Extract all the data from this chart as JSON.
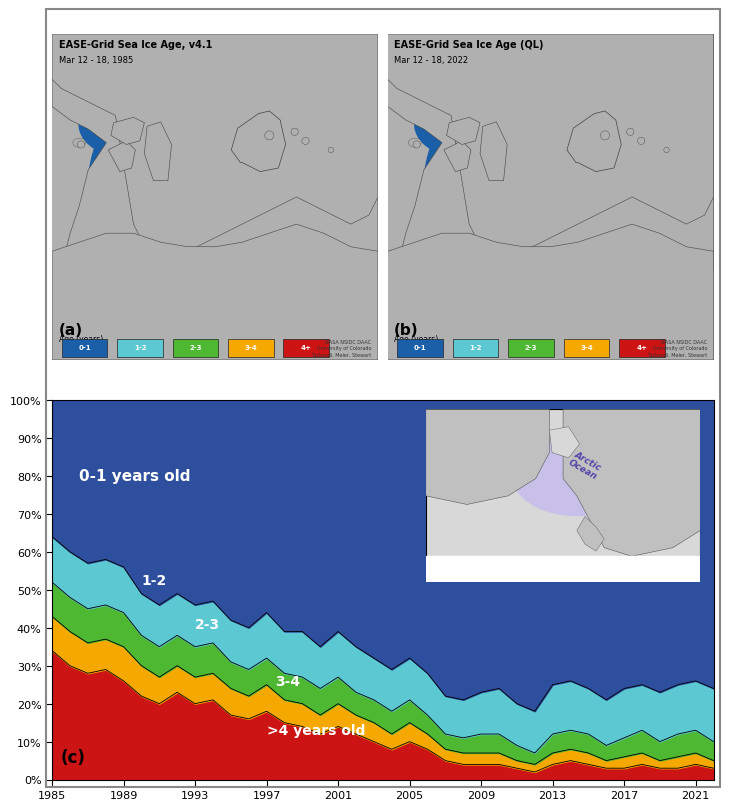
{
  "title_a": "EASE-Grid Sea Ice Age, v4.1",
  "subtitle_a": "Mar 12 - 18, 1985",
  "title_b": "EASE-Grid Sea Ice Age (QL)",
  "subtitle_b": "Mar 12 - 18, 2022",
  "label_a": "(a)",
  "label_b": "(b)",
  "label_c": "(c)",
  "age_labels": [
    "0-1",
    "1-2",
    "2-3",
    "3-4",
    "4+"
  ],
  "age_colors": [
    "#1a5fa8",
    "#5bc8d2",
    "#4eb832",
    "#f5a800",
    "#cc1414"
  ],
  "legend_label": "Age (years)",
  "credit_text": "NASA NSIDC DAAC\nUniversity of Colorado\nTuchsudi, Meier, Stewart",
  "chart_colors": {
    "age4plus": "#cc1414",
    "age34": "#f5a800",
    "age23": "#4eb832",
    "age12": "#5bc8d2",
    "age01": "#2d4f9e"
  },
  "years": [
    1985,
    1986,
    1987,
    1988,
    1989,
    1990,
    1991,
    1992,
    1993,
    1994,
    1995,
    1996,
    1997,
    1998,
    1999,
    2000,
    2001,
    2002,
    2003,
    2004,
    2005,
    2006,
    2007,
    2008,
    2009,
    2010,
    2011,
    2012,
    2013,
    2014,
    2015,
    2016,
    2017,
    2018,
    2019,
    2020,
    2021,
    2022
  ],
  "pct_4plus": [
    34,
    30,
    28,
    29,
    26,
    22,
    20,
    23,
    20,
    21,
    17,
    16,
    18,
    15,
    14,
    12,
    14,
    12,
    10,
    8,
    10,
    8,
    5,
    4,
    4,
    4,
    3,
    2,
    4,
    5,
    4,
    3,
    3,
    4,
    3,
    3,
    4,
    3
  ],
  "pct_34": [
    9,
    9,
    8,
    8,
    9,
    8,
    7,
    7,
    7,
    7,
    7,
    6,
    7,
    6,
    6,
    5,
    6,
    5,
    5,
    4,
    5,
    4,
    3,
    3,
    3,
    3,
    2,
    2,
    3,
    3,
    3,
    2,
    3,
    3,
    2,
    3,
    3,
    2
  ],
  "pct_23": [
    9,
    9,
    9,
    9,
    9,
    8,
    8,
    8,
    8,
    8,
    7,
    7,
    7,
    7,
    7,
    7,
    7,
    6,
    6,
    6,
    6,
    5,
    4,
    4,
    5,
    5,
    4,
    3,
    5,
    5,
    5,
    4,
    5,
    6,
    5,
    6,
    6,
    5
  ],
  "pct_12": [
    12,
    12,
    12,
    12,
    12,
    11,
    11,
    11,
    11,
    11,
    11,
    11,
    12,
    11,
    12,
    11,
    12,
    12,
    11,
    11,
    11,
    11,
    10,
    10,
    11,
    12,
    11,
    11,
    13,
    13,
    12,
    12,
    13,
    12,
    13,
    13,
    13,
    14
  ],
  "pct_01": [
    36,
    40,
    43,
    42,
    44,
    51,
    54,
    51,
    54,
    53,
    58,
    60,
    56,
    61,
    61,
    65,
    61,
    65,
    68,
    71,
    68,
    72,
    78,
    79,
    77,
    76,
    80,
    82,
    75,
    74,
    76,
    79,
    76,
    75,
    77,
    75,
    74,
    76
  ],
  "xtick_years": [
    1985,
    1989,
    1993,
    1997,
    2001,
    2005,
    2009,
    2013,
    2017,
    2021
  ],
  "annotation_01": "0-1 years old",
  "annotation_12": "1-2",
  "annotation_23": "2-3",
  "annotation_34": "3-4",
  "annotation_4plus": ">4 years old",
  "land_color": "#b0b0b0",
  "ocean_color": "#1a5fa8",
  "background_color": "#ffffff",
  "border_color": "#888888"
}
